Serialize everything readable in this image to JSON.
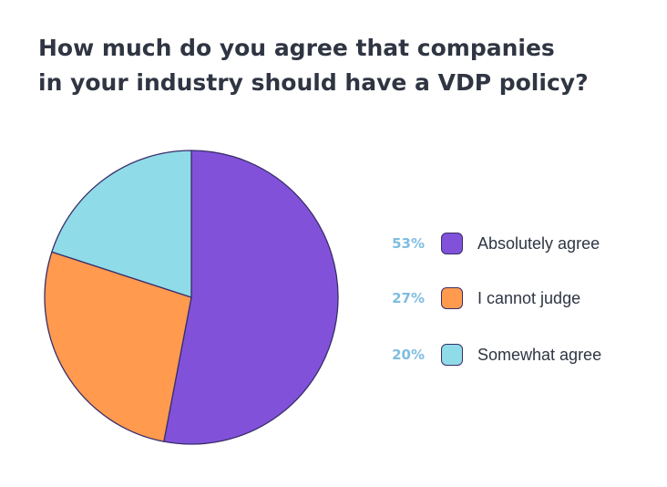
{
  "title_line1": "How much do you agree that companies",
  "title_line2": "in your industry should have a VDP policy?",
  "chart_data": {
    "type": "pie",
    "title": "How much do you agree that companies in your industry should have a VDP policy?",
    "slices": [
      {
        "label": "Absolutely agree",
        "value": 53,
        "pct_label": "53%",
        "color": "#8152d9"
      },
      {
        "label": "I cannot judge",
        "value": 27,
        "pct_label": "27%",
        "color": "#ff9a4f"
      },
      {
        "label": "Somewhat agree",
        "value": 20,
        "pct_label": "20%",
        "color": "#8fdbe8"
      }
    ],
    "legend_placement": "right",
    "outline_color": "#3a2d6b",
    "percent_label_color": "#7fbde0"
  }
}
